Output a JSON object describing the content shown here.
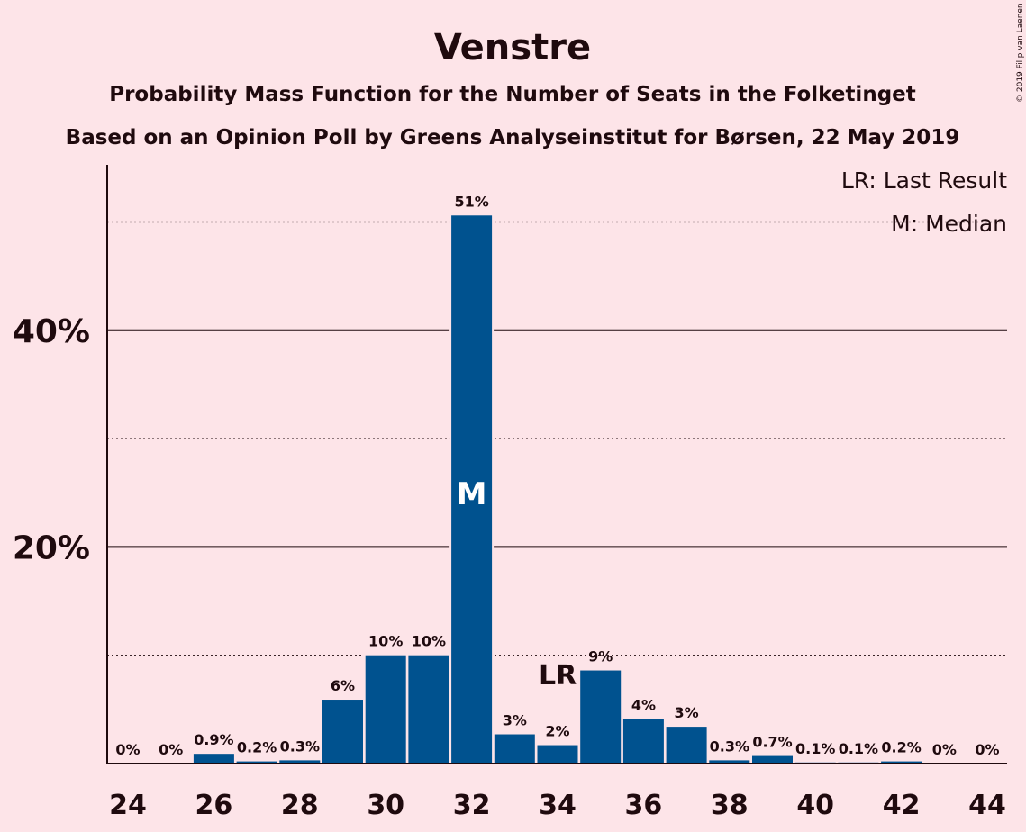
{
  "chart_data": {
    "type": "bar",
    "title": "Venstre",
    "subtitle": "Probability Mass Function for the Number of Seats in the Folketinget",
    "subtitle2": "Based on an Opinion Poll by Greens Analyseinstitut for Børsen, 22 May 2019",
    "copyright": "© 2019 Filip van Laenen",
    "legend_lr": "LR: Last Result",
    "legend_m": "M: Median",
    "legend_position": "top-right",
    "x": [
      24,
      25,
      26,
      27,
      28,
      29,
      30,
      31,
      32,
      33,
      34,
      35,
      36,
      37,
      38,
      39,
      40,
      41,
      42,
      43,
      44
    ],
    "values": [
      0,
      0,
      0.9,
      0.2,
      0.3,
      5.9,
      10.0,
      10.0,
      50.6,
      2.7,
      1.7,
      8.6,
      4.1,
      3.4,
      0.3,
      0.7,
      0.1,
      0.1,
      0.2,
      0,
      0
    ],
    "labels": [
      "0%",
      "0%",
      "0.9%",
      "0.2%",
      "0.3%",
      "6%",
      "10%",
      "10%",
      "51%",
      "3%",
      "2%",
      "9%",
      "4%",
      "3%",
      "0.3%",
      "0.7%",
      "0.1%",
      "0.1%",
      "0.2%",
      "0%",
      "0%"
    ],
    "xticks": [
      24,
      26,
      28,
      30,
      32,
      34,
      36,
      38,
      40,
      42,
      44
    ],
    "yticks": [
      {
        "value": 20,
        "label": "20%"
      },
      {
        "value": 40,
        "label": "40%"
      }
    ],
    "minor_gridlines": [
      10,
      30,
      50
    ],
    "ylim": [
      0,
      55
    ],
    "median_seat": 32,
    "median_marker": "M",
    "last_result_seat": 34,
    "last_result_marker": "LR",
    "bar_color": "#00528f",
    "background": "#fde4e8"
  }
}
